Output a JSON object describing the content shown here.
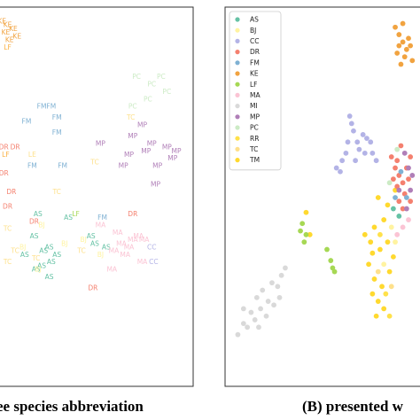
{
  "captions": {
    "left": "ee species abbreviation",
    "right": "(B) presented w"
  },
  "legend": {
    "placement": "top-left",
    "items": [
      {
        "label": "AS",
        "color": "#66c2a5"
      },
      {
        "label": "BJ",
        "color": "#fff3a0"
      },
      {
        "label": "CC",
        "color": "#b3b3e6"
      },
      {
        "label": "DR",
        "color": "#f4806f"
      },
      {
        "label": "FM",
        "color": "#7fb1d3"
      },
      {
        "label": "KE",
        "color": "#f1a340"
      },
      {
        "label": "LF",
        "color": "#a6d854"
      },
      {
        "label": "MA",
        "color": "#fbc4d4"
      },
      {
        "label": "MI",
        "color": "#d9d9d9"
      },
      {
        "label": "MP",
        "color": "#b07fb8"
      },
      {
        "label": "PC",
        "color": "#ccebc5"
      },
      {
        "label": "RR",
        "color": "#ffe14a"
      },
      {
        "label": "TC",
        "color": "#fee08b"
      },
      {
        "label": "TM",
        "color": "#ffd92f"
      }
    ]
  },
  "chart_data": [
    {
      "type": "scatter",
      "title": "",
      "xlabel": "",
      "ylabel": "",
      "grid": false,
      "marker": "text-label",
      "xlim": [
        0,
        100
      ],
      "ylim": [
        0,
        100
      ],
      "series": [
        {
          "name": "KE",
          "color": "#f1a340",
          "points": [
            [
              1,
              97
            ],
            [
              4,
              96
            ],
            [
              7,
              95
            ],
            [
              3,
              94
            ],
            [
              9,
              93
            ],
            [
              5,
              92
            ]
          ]
        },
        {
          "name": "LF",
          "color": "#fbb040",
          "points": [
            [
              4,
              90
            ],
            [
              3,
              61
            ]
          ]
        },
        {
          "name": "PC",
          "color": "#ccebc5",
          "points": [
            [
              72,
              82
            ],
            [
              80,
              80
            ],
            [
              85,
              82
            ],
            [
              78,
              76
            ],
            [
              88,
              78
            ],
            [
              70,
              74
            ]
          ]
        },
        {
          "name": "FM",
          "color": "#7fb1d3",
          "points": [
            [
              22,
              74
            ],
            [
              27,
              74
            ],
            [
              30,
              71
            ],
            [
              14,
              70
            ],
            [
              30,
              67
            ],
            [
              17,
              58
            ],
            [
              33,
              58
            ],
            [
              54,
              44
            ]
          ]
        },
        {
          "name": "MP",
          "color": "#b07fb8",
          "points": [
            [
              75,
              69
            ],
            [
              70,
              66
            ],
            [
              80,
              64
            ],
            [
              88,
              63
            ],
            [
              93,
              62
            ],
            [
              83,
              58
            ],
            [
              68,
              61
            ],
            [
              77,
              62
            ],
            [
              53,
              64
            ],
            [
              65,
              58
            ],
            [
              91,
              60
            ],
            [
              82,
              53
            ]
          ]
        },
        {
          "name": "DR",
          "color": "#f4806f",
          "points": [
            [
              2,
              63
            ],
            [
              8,
              63
            ],
            [
              2,
              56
            ],
            [
              6,
              51
            ],
            [
              18,
              43
            ],
            [
              4,
              47
            ],
            [
              70,
              45
            ],
            [
              49,
              25
            ]
          ]
        },
        {
          "name": "LE",
          "color": "#fee08b",
          "points": [
            [
              17,
              61
            ]
          ]
        },
        {
          "name": "TC",
          "color": "#fee08b",
          "points": [
            [
              50,
              59
            ],
            [
              30,
              51
            ],
            [
              4,
              41
            ],
            [
              8,
              35
            ],
            [
              4,
              32
            ],
            [
              19,
              33
            ],
            [
              43,
              35
            ],
            [
              69,
              71
            ]
          ]
        },
        {
          "name": "AS",
          "color": "#66c2a5",
          "points": [
            [
              20,
              45
            ],
            [
              36,
              44
            ],
            [
              18,
              39
            ],
            [
              48,
              39
            ],
            [
              26,
              36
            ],
            [
              50,
              37
            ],
            [
              13,
              34
            ],
            [
              30,
              34
            ],
            [
              56,
              36
            ],
            [
              22,
              31
            ],
            [
              26,
              28
            ],
            [
              19,
              30
            ],
            [
              27,
              32
            ],
            [
              23,
              35
            ]
          ]
        },
        {
          "name": "LF",
          "color": "#a6d854",
          "points": [
            [
              40,
              45
            ]
          ]
        },
        {
          "name": "MA",
          "color": "#fbc4d4",
          "points": [
            [
              53,
              42
            ],
            [
              62,
              40
            ],
            [
              68,
              36
            ],
            [
              76,
              38
            ],
            [
              60,
              35
            ],
            [
              66,
              34
            ],
            [
              75,
              32
            ],
            [
              59,
              30
            ],
            [
              70,
              38
            ],
            [
              73,
              39
            ],
            [
              64,
              37
            ]
          ]
        },
        {
          "name": "CC",
          "color": "#b3b3e6",
          "points": [
            [
              80,
              36
            ],
            [
              81,
              32
            ]
          ]
        },
        {
          "name": "BJ",
          "color": "#fff3a0",
          "points": [
            [
              22,
              42
            ],
            [
              34,
              37
            ],
            [
              44,
              38
            ],
            [
              12,
              36
            ],
            [
              20,
              30
            ],
            [
              53,
              34
            ]
          ]
        }
      ]
    },
    {
      "type": "scatter",
      "title": "",
      "xlabel": "",
      "ylabel": "",
      "grid": false,
      "marker": "dot",
      "xlim": [
        0,
        100
      ],
      "ylim": [
        0,
        100
      ],
      "series": [
        {
          "name": "KE",
          "color": "#f1a340",
          "points": [
            [
              86,
              96
            ],
            [
              88,
              94
            ],
            [
              90,
              92
            ],
            [
              92,
              90
            ],
            [
              87,
              89
            ],
            [
              91,
              88
            ],
            [
              89,
              86
            ],
            [
              93,
              93
            ],
            [
              95,
              87
            ],
            [
              90,
              97
            ],
            [
              94,
              91
            ],
            [
              88,
              91
            ]
          ]
        },
        {
          "name": "CC",
          "color": "#b3b3e6",
          "points": [
            [
              62,
              72
            ],
            [
              64,
              68
            ],
            [
              66,
              65
            ],
            [
              60,
              62
            ],
            [
              58,
              60
            ],
            [
              57,
              57
            ],
            [
              69,
              67
            ],
            [
              71,
              66
            ],
            [
              73,
              65
            ],
            [
              67,
              63
            ],
            [
              63,
              70
            ],
            [
              55,
              58
            ],
            [
              74,
              62
            ],
            [
              76,
              60
            ],
            [
              70,
              62
            ],
            [
              61,
              65
            ],
            [
              65,
              60
            ]
          ]
        },
        {
          "name": "TM",
          "color": "#ffd92f",
          "points": [
            [
              39,
              46
            ],
            [
              41,
              40
            ],
            [
              77,
              50
            ],
            [
              82,
              48
            ],
            [
              86,
              52
            ],
            [
              80,
              44
            ],
            [
              75,
              42
            ],
            [
              73,
              38
            ],
            [
              78,
              36
            ],
            [
              72,
              32
            ],
            [
              75,
              28
            ],
            [
              74,
              24
            ],
            [
              77,
              22
            ],
            [
              80,
              20
            ],
            [
              76,
              18
            ],
            [
              79,
              26
            ],
            [
              83,
              30
            ],
            [
              82,
              38
            ],
            [
              85,
              34
            ],
            [
              70,
              40
            ],
            [
              74,
              35
            ]
          ]
        },
        {
          "name": "LF",
          "color": "#a6d854",
          "points": [
            [
              37,
              43
            ],
            [
              38,
              38
            ],
            [
              39,
              40
            ],
            [
              36,
              41
            ],
            [
              50,
              36
            ],
            [
              52,
              33
            ],
            [
              53,
              31
            ],
            [
              54,
              30
            ]
          ]
        },
        {
          "name": "MI",
          "color": "#d9d9d9",
          "points": [
            [
              3,
              13
            ],
            [
              6,
              16
            ],
            [
              10,
              19
            ],
            [
              13,
              23
            ],
            [
              16,
              25
            ],
            [
              19,
              22
            ],
            [
              21,
              27
            ],
            [
              24,
              26
            ],
            [
              26,
              29
            ],
            [
              28,
              31
            ],
            [
              8,
              15
            ],
            [
              12,
              17
            ],
            [
              15,
              20
            ],
            [
              18,
              18
            ],
            [
              22,
              21
            ],
            [
              25,
              23
            ],
            [
              14,
              15
            ],
            [
              6,
              20
            ]
          ]
        },
        {
          "name": "DR",
          "color": "#f4806f",
          "points": [
            [
              86,
              58
            ],
            [
              88,
              56
            ],
            [
              90,
              54
            ],
            [
              87,
              53
            ],
            [
              92,
              58
            ],
            [
              84,
              61
            ],
            [
              94,
              61
            ],
            [
              89,
              64
            ],
            [
              91,
              51
            ],
            [
              85,
              55
            ],
            [
              93,
              55
            ],
            [
              88,
              49
            ],
            [
              87,
              60
            ],
            [
              94,
              49
            ],
            [
              90,
              47
            ]
          ]
        },
        {
          "name": "MP",
          "color": "#b07fb8",
          "points": [
            [
              91,
              62
            ],
            [
              93,
              58
            ],
            [
              94,
              52
            ],
            [
              88,
              52
            ],
            [
              92,
              47
            ],
            [
              95,
              56
            ]
          ]
        },
        {
          "name": "FM",
          "color": "#7fb1d3",
          "points": [
            [
              89,
              57
            ],
            [
              92,
              50
            ],
            [
              86,
              50
            ]
          ]
        },
        {
          "name": "AS",
          "color": "#66c2a5",
          "points": [
            [
              85,
              47
            ],
            [
              88,
              45
            ]
          ]
        },
        {
          "name": "PC",
          "color": "#ccebc5",
          "points": [
            [
              83,
              54
            ],
            [
              87,
              63
            ]
          ]
        },
        {
          "name": "MA",
          "color": "#fbc4d4",
          "points": [
            [
              90,
              42
            ],
            [
              93,
              44
            ],
            [
              87,
              40
            ]
          ]
        },
        {
          "name": "BJ",
          "color": "#fff3a0",
          "points": [
            [
              84,
              42
            ],
            [
              80,
              32
            ],
            [
              86,
              38
            ]
          ]
        },
        {
          "name": "RR",
          "color": "#ffe14a",
          "points": [
            [
              78,
              40
            ],
            [
              81,
              24
            ],
            [
              83,
              18
            ]
          ]
        },
        {
          "name": "TC",
          "color": "#fee08b",
          "points": [
            [
              77,
              30
            ],
            [
              84,
              26
            ]
          ]
        }
      ]
    }
  ]
}
